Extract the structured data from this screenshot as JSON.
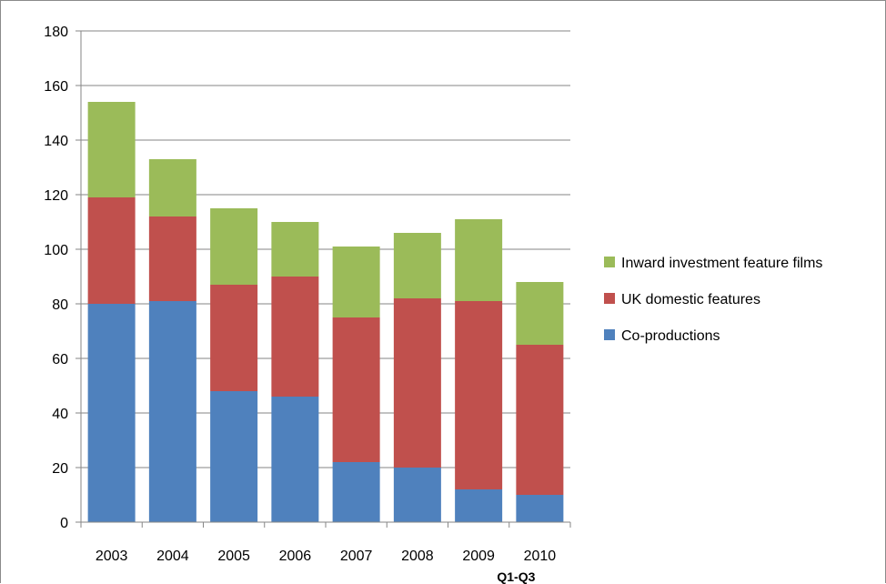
{
  "chart_data": {
    "type": "bar",
    "stacked": true,
    "title": "",
    "xlabel": "",
    "ylabel": "",
    "categories": [
      "2003",
      "2004",
      "2005",
      "2006",
      "2007",
      "2008",
      "2009",
      "2010"
    ],
    "category_sublabels": [
      "",
      "",
      "",
      "",
      "",
      "",
      "",
      "Q1-Q3"
    ],
    "ylim": [
      0,
      180
    ],
    "yticks": [
      0,
      20,
      40,
      60,
      80,
      100,
      120,
      140,
      160,
      180
    ],
    "grid": true,
    "legend_position": "right",
    "series": [
      {
        "name": "Co-productions",
        "color": "#4f81bd",
        "values": [
          80,
          81,
          48,
          46,
          22,
          20,
          12,
          10
        ]
      },
      {
        "name": "UK domestic features",
        "color": "#c0504d",
        "values": [
          39,
          31,
          39,
          44,
          53,
          62,
          69,
          55
        ]
      },
      {
        "name": "Inward investment feature films",
        "color": "#9bbb59",
        "values": [
          35,
          21,
          28,
          20,
          26,
          24,
          30,
          23
        ]
      }
    ]
  }
}
